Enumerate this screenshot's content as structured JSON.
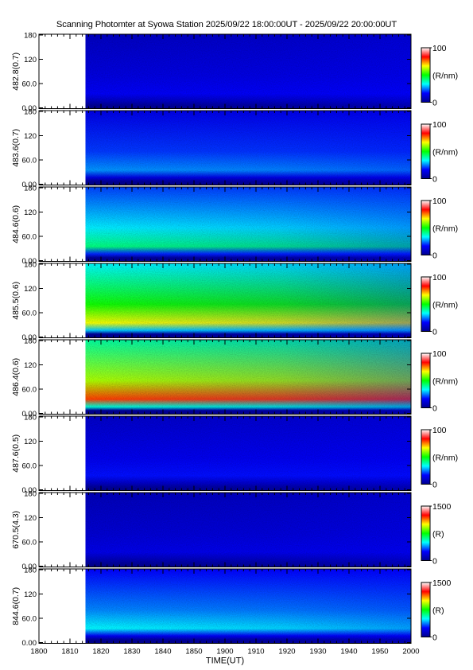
{
  "chart_data": {
    "type": "heatmap",
    "title": "Scanning Photomter at Syowa Station 2025/09/22 18:00:00UT - 2025/09/22 20:00:00UT",
    "xlabel": "TIME(UT)",
    "x_ticks": [
      "1800",
      "1810",
      "1820",
      "1830",
      "1840",
      "1850",
      "1900",
      "1910",
      "1920",
      "1930",
      "1940",
      "1950",
      "2000"
    ],
    "x_range": [
      "18:00",
      "20:00"
    ],
    "data_start": "18:15",
    "y_ticks": [
      "0.00",
      "60.0",
      "120",
      "180"
    ],
    "ylim": [
      0,
      180
    ],
    "colormap": [
      "#00008b",
      "#0000ff",
      "#00ffff",
      "#00ff00",
      "#ffff00",
      "#ff0000",
      "#ffffff"
    ],
    "panels": [
      {
        "label": "482.8(0.7)",
        "cb_max": "100",
        "cb_min": "0",
        "cb_unit": "(R/nm)",
        "level": 0.14
      },
      {
        "label": "483.6(0.7)",
        "cb_max": "100",
        "cb_min": "0",
        "cb_unit": "(R/nm)",
        "level": 0.24
      },
      {
        "label": "484.6(0.6)",
        "cb_max": "100",
        "cb_min": "0",
        "cb_unit": "(R/nm)",
        "level": 0.38
      },
      {
        "label": "485.5(0.6)",
        "cb_max": "100",
        "cb_min": "0",
        "cb_unit": "(R/nm)",
        "level": 0.6
      },
      {
        "label": "486.4(0.6)",
        "cb_max": "100",
        "cb_min": "0",
        "cb_unit": "(R/nm)",
        "level": 0.72
      },
      {
        "label": "487.6(0.5)",
        "cb_max": "100",
        "cb_min": "0",
        "cb_unit": "(R/nm)",
        "level": 0.16
      },
      {
        "label": "670.5(4.3)",
        "cb_max": "1500",
        "cb_min": "0",
        "cb_unit": "(R)",
        "level": 0.12
      },
      {
        "label": "844.6(0.7)",
        "cb_max": "1500",
        "cb_min": "0",
        "cb_unit": "(R)",
        "level": 0.3
      }
    ]
  }
}
